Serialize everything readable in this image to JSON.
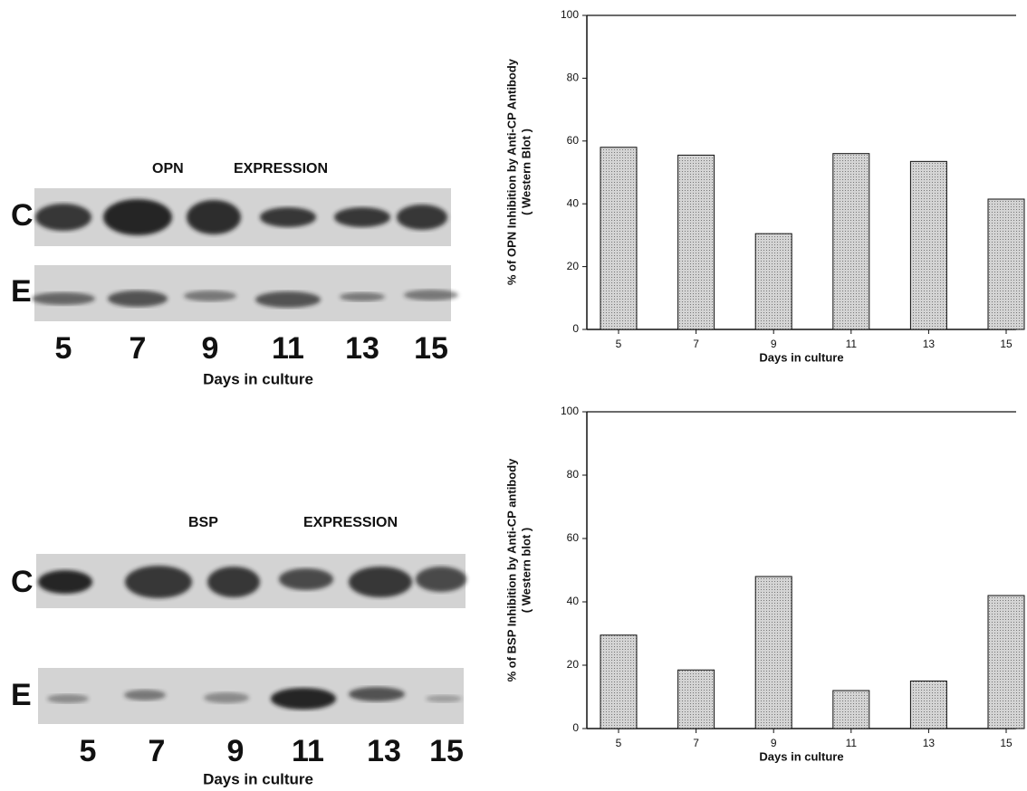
{
  "chart_data": [
    {
      "type": "bar",
      "ylabel": [
        "% of OPN Inhibition by Anti-CP Antibody",
        "( Western Blot )"
      ],
      "xlabel": "Days in culture",
      "categories": [
        "5",
        "7",
        "9",
        "11",
        "13",
        "15"
      ],
      "values": [
        58,
        55.5,
        30.5,
        56,
        53.5,
        41.5
      ],
      "color": "#c4c4c4",
      "ylim": [
        0,
        100
      ],
      "yticks": [
        0,
        20,
        40,
        60,
        80,
        100
      ]
    },
    {
      "type": "bar",
      "ylabel": [
        "% of BSP Inhibition by Anti-CP antibody",
        "( Western blot )"
      ],
      "xlabel": "Days in culture",
      "categories": [
        "5",
        "7",
        "9",
        "11",
        "13",
        "15"
      ],
      "values": [
        29.5,
        18.5,
        48,
        12,
        15,
        42
      ],
      "color": "#c4c4c4",
      "ylim": [
        0,
        100
      ],
      "yticks": [
        0,
        20,
        40,
        60,
        80,
        100
      ]
    }
  ],
  "blots": [
    {
      "title": [
        "OPN",
        "EXPRESSION"
      ],
      "rows": [
        "C",
        "E"
      ],
      "lanes": [
        "5",
        "7",
        "9",
        "11",
        "13",
        "15"
      ],
      "xlabel": "Days in culture"
    },
    {
      "title": [
        "BSP",
        "EXPRESSION"
      ],
      "rows": [
        "C",
        "E"
      ],
      "lanes": [
        "5",
        "7",
        "9",
        "11",
        "13",
        "15"
      ],
      "xlabel": "Days in culture"
    }
  ]
}
